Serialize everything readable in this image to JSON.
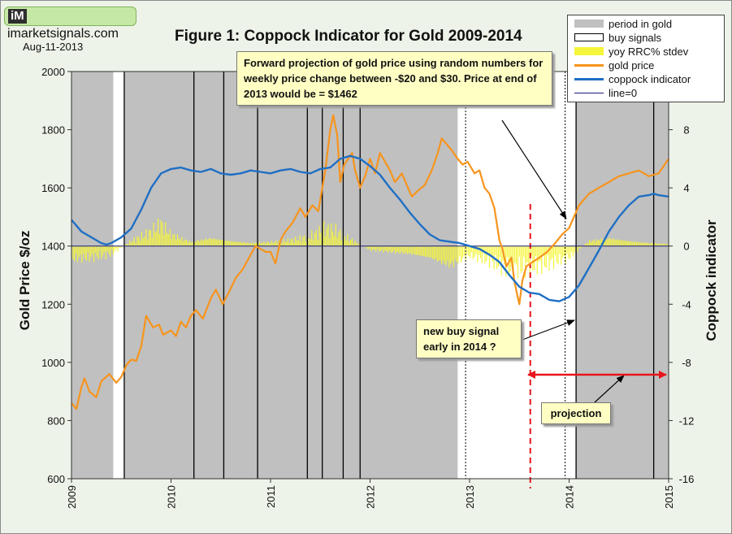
{
  "brand": {
    "logo_mark": "iM",
    "site": "imarketsignals.com"
  },
  "as_of_date": "Aug-11-2013",
  "colors": {
    "period": "#c0c0c0",
    "gold": "#f7941d",
    "coppock": "#1f6fc4",
    "stdev": "#f5f53a",
    "callout_bg": "#ffffc4",
    "arrow_red": "#e8141b"
  },
  "chart_data": {
    "type": "line",
    "title": "Figure 1:  Coppock Indicator for Gold  2009-2014",
    "ylabel": "Gold Price  $/oz",
    "y2label": "Coppock indicator",
    "xlim": [
      2009,
      2015
    ],
    "ylim": [
      600,
      2000
    ],
    "y2lim": [
      -16,
      12
    ],
    "x_ticks": [
      "2009",
      "2010",
      "2011",
      "2012",
      "2013",
      "2014",
      "2015"
    ],
    "y_ticks": [
      600,
      800,
      1000,
      1200,
      1400,
      1600,
      1800,
      2000
    ],
    "y2_ticks": [
      -16,
      -12,
      -8,
      -4,
      0,
      4,
      8
    ],
    "legend": {
      "position": "top-right",
      "items": [
        "period in gold",
        "buy signals",
        "yoy RRC% stdev",
        "gold price",
        "coppock indicator",
        "line=0"
      ]
    },
    "periods_in_gold": [
      [
        2009.0,
        2009.42
      ],
      [
        2009.53,
        2012.88
      ],
      [
        2014.07,
        2015.0
      ]
    ],
    "buy_signals": [
      2009.53,
      2010.23,
      2010.53,
      2010.87,
      2011.37,
      2011.52,
      2011.73,
      2011.9,
      2014.07,
      2014.85
    ],
    "projection_markers": {
      "current": 2013.61,
      "dotted": [
        2012.96,
        2013.96
      ]
    },
    "series": [
      {
        "name": "gold price",
        "axis": "left",
        "x": [
          2009.0,
          2009.05,
          2009.1,
          2009.13,
          2009.18,
          2009.25,
          2009.3,
          2009.38,
          2009.45,
          2009.5,
          2009.55,
          2009.6,
          2009.65,
          2009.7,
          2009.75,
          2009.82,
          2009.88,
          2009.92,
          2010.0,
          2010.05,
          2010.1,
          2010.15,
          2010.2,
          2010.25,
          2010.32,
          2010.4,
          2010.45,
          2010.52,
          2010.58,
          2010.65,
          2010.72,
          2010.8,
          2010.85,
          2010.9,
          2010.95,
          2011.0,
          2011.05,
          2011.1,
          2011.15,
          2011.22,
          2011.3,
          2011.35,
          2011.42,
          2011.48,
          2011.55,
          2011.6,
          2011.63,
          2011.67,
          2011.7,
          2011.74,
          2011.78,
          2011.82,
          2011.85,
          2011.9,
          2011.95,
          2012.0,
          2012.05,
          2012.1,
          2012.15,
          2012.2,
          2012.25,
          2012.32,
          2012.38,
          2012.42,
          2012.48,
          2012.55,
          2012.62,
          2012.68,
          2012.72,
          2012.77,
          2012.82,
          2012.88,
          2012.93,
          2012.98,
          2013.05,
          2013.1,
          2013.15,
          2013.2,
          2013.25,
          2013.3,
          2013.33,
          2013.37,
          2013.42,
          2013.45,
          2013.48,
          2013.5,
          2013.53,
          2013.57,
          2013.61,
          2013.7,
          2013.78,
          2013.86,
          2013.93,
          2014.0,
          2014.1,
          2014.2,
          2014.3,
          2014.4,
          2014.5,
          2014.6,
          2014.7,
          2014.8,
          2014.9,
          2014.96,
          2015.0
        ],
        "values": [
          860,
          840,
          915,
          945,
          900,
          880,
          935,
          960,
          930,
          950,
          990,
          1010,
          1005,
          1055,
          1160,
          1120,
          1130,
          1095,
          1110,
          1090,
          1140,
          1120,
          1160,
          1180,
          1150,
          1220,
          1250,
          1200,
          1240,
          1290,
          1320,
          1370,
          1400,
          1390,
          1380,
          1380,
          1340,
          1420,
          1450,
          1480,
          1530,
          1500,
          1540,
          1520,
          1660,
          1800,
          1850,
          1780,
          1620,
          1680,
          1700,
          1720,
          1660,
          1600,
          1640,
          1700,
          1650,
          1720,
          1690,
          1660,
          1620,
          1650,
          1600,
          1570,
          1590,
          1610,
          1660,
          1720,
          1770,
          1750,
          1730,
          1700,
          1680,
          1690,
          1650,
          1660,
          1600,
          1580,
          1530,
          1420,
          1390,
          1330,
          1360,
          1280,
          1230,
          1200,
          1280,
          1330,
          1340,
          1360,
          1380,
          1410,
          1440,
          1462,
          1540,
          1580,
          1600,
          1620,
          1640,
          1650,
          1660,
          1640,
          1650,
          1680,
          1700
        ]
      },
      {
        "name": "coppock indicator",
        "axis": "right",
        "x": [
          2009.0,
          2009.1,
          2009.2,
          2009.3,
          2009.35,
          2009.4,
          2009.5,
          2009.6,
          2009.7,
          2009.8,
          2009.9,
          2010.0,
          2010.1,
          2010.2,
          2010.3,
          2010.4,
          2010.5,
          2010.6,
          2010.7,
          2010.8,
          2010.9,
          2011.0,
          2011.1,
          2011.2,
          2011.3,
          2011.4,
          2011.5,
          2011.6,
          2011.7,
          2011.8,
          2011.9,
          2012.0,
          2012.1,
          2012.2,
          2012.3,
          2012.4,
          2012.5,
          2012.6,
          2012.7,
          2012.8,
          2012.9,
          2013.0,
          2013.1,
          2013.2,
          2013.3,
          2013.4,
          2013.5,
          2013.6,
          2013.7,
          2013.8,
          2013.9,
          2014.0,
          2014.1,
          2014.2,
          2014.3,
          2014.4,
          2014.5,
          2014.6,
          2014.7,
          2014.8,
          2014.85,
          2014.9,
          2015.0
        ],
        "values": [
          1.8,
          1.0,
          0.6,
          0.2,
          0.1,
          0.2,
          0.6,
          1.2,
          2.5,
          4.0,
          5.0,
          5.3,
          5.4,
          5.2,
          5.1,
          5.3,
          5.0,
          4.9,
          5.0,
          5.2,
          5.1,
          5.0,
          5.2,
          5.3,
          5.1,
          5.0,
          5.3,
          5.4,
          6.0,
          6.2,
          6.0,
          5.5,
          4.9,
          4.0,
          3.2,
          2.3,
          1.5,
          0.8,
          0.4,
          0.3,
          0.2,
          0.0,
          -0.2,
          -0.6,
          -1.1,
          -2.0,
          -2.8,
          -3.2,
          -3.3,
          -3.7,
          -3.8,
          -3.5,
          -2.7,
          -1.5,
          -0.3,
          1.0,
          2.0,
          2.8,
          3.4,
          3.5,
          3.6,
          3.5,
          3.4
        ]
      },
      {
        "name": "yoy RRC% stdev",
        "axis": "right",
        "x": [
          2009.0,
          2009.2,
          2009.4,
          2009.6,
          2009.8,
          2009.9,
          2010.0,
          2010.2,
          2010.4,
          2010.6,
          2010.8,
          2011.0,
          2011.2,
          2011.4,
          2011.55,
          2011.65,
          2011.8,
          2012.0,
          2012.2,
          2012.4,
          2012.6,
          2012.8,
          2013.0,
          2013.2,
          2013.4,
          2013.6,
          2013.8,
          2014.0,
          2014.2,
          2014.4,
          2014.6,
          2014.8,
          2015.0
        ],
        "values": [
          -1.3,
          -1.2,
          -0.8,
          0.5,
          1.5,
          2.3,
          1.2,
          0.4,
          0.8,
          0.5,
          0.3,
          0.4,
          0.6,
          1.0,
          1.8,
          1.6,
          0.7,
          -0.4,
          -0.6,
          -0.8,
          -1.2,
          -2.0,
          -1.0,
          -1.6,
          -2.4,
          -2.2,
          -1.8,
          -1.2,
          0.5,
          0.8,
          0.5,
          0.3,
          0.2
        ]
      }
    ],
    "annotations": {
      "projection_note": "Forward projection of gold price using random numbers for weekly price change between -$20 and $30.  Price at end of 2013 would be = $1462",
      "buy_note": "new buy signal early in 2014 ?",
      "projection_label": "projection"
    }
  }
}
